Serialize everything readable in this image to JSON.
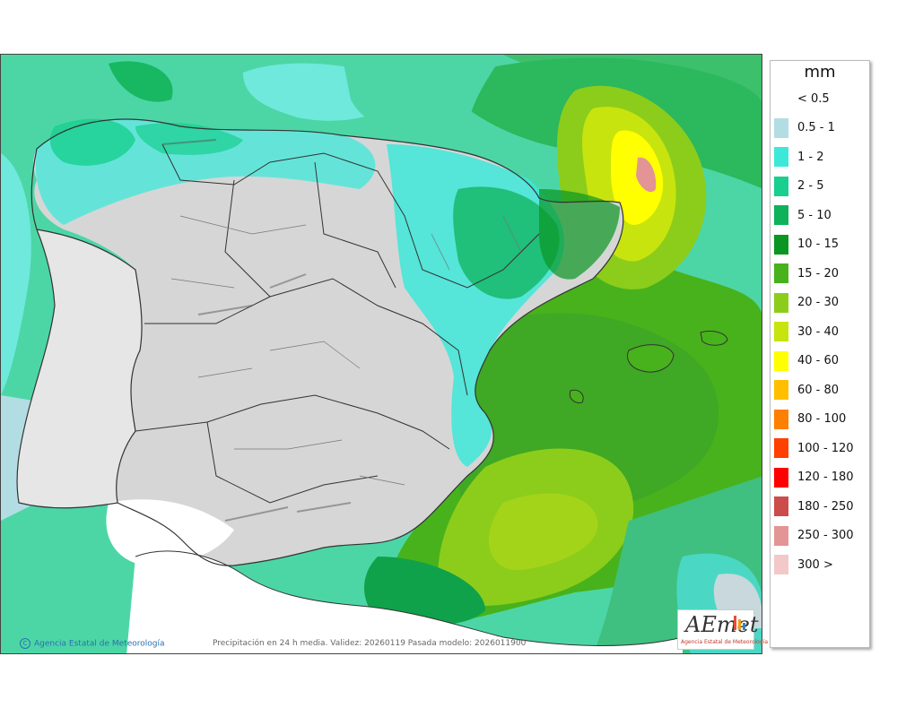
{
  "legend": {
    "title": "mm",
    "items": [
      {
        "label": "< 0.5",
        "color": ""
      },
      {
        "label": "0.5 - 1",
        "color": "#b2dde3"
      },
      {
        "label": "1 - 2",
        "color": "#3ee8d9"
      },
      {
        "label": "2 - 5",
        "color": "#18cf8f"
      },
      {
        "label": "5 - 10",
        "color": "#0fb25a"
      },
      {
        "label": "10 - 15",
        "color": "#0a9622"
      },
      {
        "label": "15 - 20",
        "color": "#48b21c"
      },
      {
        "label": "20 - 30",
        "color": "#8ccd1b"
      },
      {
        "label": "30 - 40",
        "color": "#c8e40e"
      },
      {
        "label": "40 - 60",
        "color": "#ffff00"
      },
      {
        "label": "60 - 80",
        "color": "#ffbf00"
      },
      {
        "label": "80 - 100",
        "color": "#ff7f00"
      },
      {
        "label": "100 - 120",
        "color": "#ff4000"
      },
      {
        "label": "120 - 180",
        "color": "#ff0000"
      },
      {
        "label": "180 - 250",
        "color": "#cc4c4c"
      },
      {
        "label": "250 - 300",
        "color": "#e39494"
      },
      {
        "label": "300 >",
        "color": "#f3c8c8"
      }
    ]
  },
  "credit": {
    "text": "Agencia Estatal de Meteorología"
  },
  "caption": {
    "text": "Precipitación en 24 h media. Validez: 20260119 Pasada modelo: 2026011900"
  },
  "logo": {
    "text": "AEmet",
    "subtitle": "Agencia Estatal de Meteorología"
  }
}
